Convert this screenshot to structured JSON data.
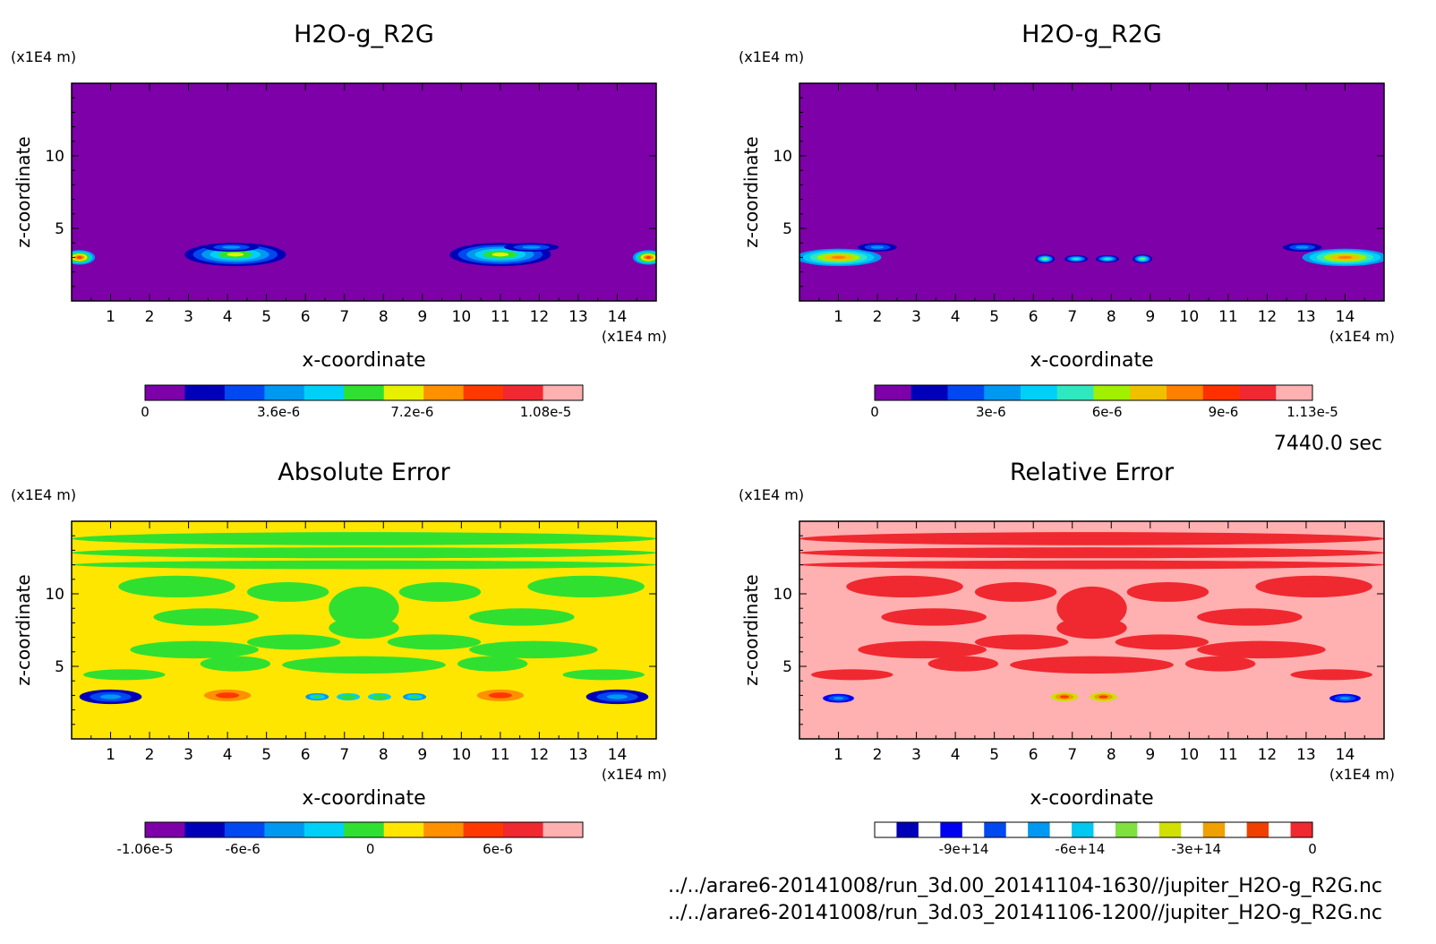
{
  "figure": {
    "time_label": "7440.0 sec",
    "files": [
      "../../arare6-20141008/run_3d.00_20141104-1630//jupiter_H2O-g_R2G.nc",
      "../../arare6-20141008/run_3d.03_20141106-1200//jupiter_H2O-g_R2G.nc"
    ]
  },
  "chart_data": [
    {
      "type": "heatmap",
      "title": "H2O-g_R2G",
      "xlabel": "x-coordinate",
      "ylabel": "z-coordinate",
      "x_unit": "(x1E4 m)",
      "y_unit": "(x1E4 m)",
      "xlim": [
        0,
        15
      ],
      "ylim": [
        0,
        15
      ],
      "xticks": [
        "1",
        "2",
        "3",
        "4",
        "5",
        "6",
        "7",
        "8",
        "9",
        "10",
        "11",
        "12",
        "13",
        "14"
      ],
      "yticks": [
        "5",
        "10"
      ],
      "background": "#7d00a8",
      "colorbar": {
        "colors": [
          "#7d00a8",
          "#0000b8",
          "#0048f0",
          "#0098f0",
          "#00d0f8",
          "#30e030",
          "#e8f000",
          "#ff9000",
          "#ff3800",
          "#f02830",
          "#ffb0b0"
        ],
        "labels": [
          "0",
          "3.6e-6",
          "7.2e-6",
          "1.08e-5"
        ],
        "label_values": [
          0,
          3.6e-06,
          7.2e-06,
          1.08e-05
        ],
        "range": [
          0,
          1.18e-05
        ]
      },
      "blobs": [
        {
          "x": 0.2,
          "z": 3.0,
          "rx": 0.4,
          "rz": 0.5,
          "level": 8
        },
        {
          "x": 4.2,
          "z": 3.2,
          "rx": 1.3,
          "rz": 0.8,
          "level": 6
        },
        {
          "x": 4.1,
          "z": 3.7,
          "rx": 0.7,
          "rz": 0.3,
          "level": 3
        },
        {
          "x": 11.0,
          "z": 3.2,
          "rx": 1.3,
          "rz": 0.8,
          "level": 6
        },
        {
          "x": 11.8,
          "z": 3.7,
          "rx": 0.7,
          "rz": 0.3,
          "level": 3
        },
        {
          "x": 14.8,
          "z": 3.0,
          "rx": 0.4,
          "rz": 0.5,
          "level": 8
        }
      ]
    },
    {
      "type": "heatmap",
      "title": "H2O-g_R2G",
      "xlabel": "x-coordinate",
      "ylabel": "z-coordinate",
      "x_unit": "(x1E4 m)",
      "y_unit": "(x1E4 m)",
      "xlim": [
        0,
        15
      ],
      "ylim": [
        0,
        15
      ],
      "xticks": [
        "1",
        "2",
        "3",
        "4",
        "5",
        "6",
        "7",
        "8",
        "9",
        "10",
        "11",
        "12",
        "13",
        "14"
      ],
      "yticks": [
        "5",
        "10"
      ],
      "background": "#7d00a8",
      "colorbar": {
        "colors": [
          "#7d00a8",
          "#0000b8",
          "#0048f0",
          "#0098f0",
          "#00d0f8",
          "#30e8c0",
          "#a0f000",
          "#f0c000",
          "#ff8000",
          "#ff3000",
          "#f02830",
          "#ffb0b0"
        ],
        "labels": [
          "0",
          "3e-6",
          "6e-6",
          "9e-6",
          "1.13e-5"
        ],
        "label_values": [
          0,
          3e-06,
          6e-06,
          9e-06,
          1.13e-05
        ],
        "range": [
          0,
          1.13e-05
        ]
      },
      "blobs": [
        {
          "x": 1.0,
          "z": 3.0,
          "rx": 1.1,
          "rz": 0.6,
          "level": 8
        },
        {
          "x": 2.0,
          "z": 3.7,
          "rx": 0.5,
          "rz": 0.3,
          "level": 3
        },
        {
          "x": 6.3,
          "z": 2.9,
          "rx": 0.25,
          "rz": 0.3,
          "level": 6
        },
        {
          "x": 7.1,
          "z": 2.9,
          "rx": 0.3,
          "rz": 0.25,
          "level": 5
        },
        {
          "x": 7.9,
          "z": 2.9,
          "rx": 0.3,
          "rz": 0.25,
          "level": 5
        },
        {
          "x": 8.8,
          "z": 2.9,
          "rx": 0.25,
          "rz": 0.3,
          "level": 6
        },
        {
          "x": 12.9,
          "z": 3.7,
          "rx": 0.5,
          "rz": 0.3,
          "level": 3
        },
        {
          "x": 14.0,
          "z": 3.0,
          "rx": 1.1,
          "rz": 0.6,
          "level": 8
        }
      ]
    },
    {
      "type": "heatmap",
      "title": "Absolute Error",
      "xlabel": "x-coordinate",
      "ylabel": "z-coordinate",
      "x_unit": "(x1E4 m)",
      "y_unit": "(x1E4 m)",
      "xlim": [
        0,
        15
      ],
      "ylim": [
        0,
        15
      ],
      "xticks": [
        "1",
        "2",
        "3",
        "4",
        "5",
        "6",
        "7",
        "8",
        "9",
        "10",
        "11",
        "12",
        "13",
        "14"
      ],
      "yticks": [
        "5",
        "10"
      ],
      "background": "#ffe600",
      "colorbar": {
        "colors": [
          "#7d00a8",
          "#0000b8",
          "#0048f0",
          "#0098f0",
          "#00d0f8",
          "#30e030",
          "#ffe600",
          "#ff9000",
          "#ff3800",
          "#f02830",
          "#ffb0b0"
        ],
        "labels": [
          "-1.06e-5",
          "-6e-6",
          "0",
          "6e-6"
        ],
        "label_values": [
          -1.06e-05,
          -6e-06,
          0,
          6e-06
        ],
        "range": [
          -1.06e-05,
          1e-05
        ]
      },
      "blobs": [
        {
          "x": 1.0,
          "z": 2.9,
          "rx": 0.8,
          "rz": 0.5,
          "level": 1
        },
        {
          "x": 14.0,
          "z": 2.9,
          "rx": 0.8,
          "rz": 0.5,
          "level": 1
        },
        {
          "x": 4.0,
          "z": 3.0,
          "rx": 0.9,
          "rz": 0.6,
          "level": 8
        },
        {
          "x": 11.0,
          "z": 3.0,
          "rx": 0.9,
          "rz": 0.6,
          "level": 8
        },
        {
          "x": 6.3,
          "z": 2.9,
          "rx": 0.3,
          "rz": 0.25,
          "level": 3
        },
        {
          "x": 7.1,
          "z": 2.9,
          "rx": 0.3,
          "rz": 0.25,
          "level": 4
        },
        {
          "x": 7.9,
          "z": 2.9,
          "rx": 0.3,
          "rz": 0.25,
          "level": 4
        },
        {
          "x": 8.8,
          "z": 2.9,
          "rx": 0.3,
          "rz": 0.25,
          "level": 3
        }
      ]
    },
    {
      "type": "heatmap",
      "title": "Relative Error",
      "xlabel": "x-coordinate",
      "ylabel": "z-coordinate",
      "x_unit": "(x1E4 m)",
      "y_unit": "(x1E4 m)",
      "xlim": [
        0,
        15
      ],
      "ylim": [
        0,
        15
      ],
      "xticks": [
        "1",
        "2",
        "3",
        "4",
        "5",
        "6",
        "7",
        "8",
        "9",
        "10",
        "11",
        "12",
        "13",
        "14"
      ],
      "yticks": [
        "5",
        "10"
      ],
      "background": "#ffb0b0",
      "colorbar": {
        "colors": [
          "#ffffff",
          "#0000b8",
          "#ffffff",
          "#0000f0",
          "#ffffff",
          "#0048f0",
          "#ffffff",
          "#0098f0",
          "#ffffff",
          "#00c8f0",
          "#ffffff",
          "#80e040",
          "#ffffff",
          "#d0e000",
          "#ffffff",
          "#f0a000",
          "#ffffff",
          "#f04000",
          "#ffffff",
          "#f02830"
        ],
        "labels": [
          "-9e+14",
          "-6e+14",
          "-3e+14",
          "0"
        ],
        "label_values": [
          -900000000000000.0,
          -600000000000000.0,
          -300000000000000.0,
          0
        ],
        "range": [
          -1130000000000000.0,
          0
        ]
      },
      "blobs": [
        {
          "x": 1.0,
          "z": 2.8,
          "rx": 0.4,
          "rz": 0.3,
          "level": 3
        },
        {
          "x": 14.0,
          "z": 2.8,
          "rx": 0.4,
          "rz": 0.3,
          "level": 3
        },
        {
          "x": 6.8,
          "z": 2.9,
          "rx": 0.35,
          "rz": 0.3,
          "level": 13
        },
        {
          "x": 7.8,
          "z": 2.9,
          "rx": 0.35,
          "rz": 0.3,
          "level": 13
        }
      ]
    }
  ]
}
